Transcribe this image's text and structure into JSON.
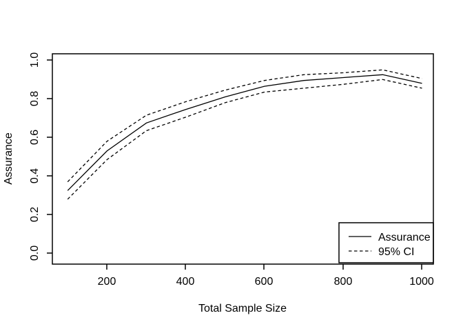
{
  "figure": {
    "background_color": "#ffffff",
    "line_color": "#000000"
  },
  "chart_data": {
    "type": "line",
    "title": "",
    "xlabel": "Total Sample Size",
    "ylabel": "Assurance",
    "x": [
      100,
      200,
      300,
      400,
      500,
      600,
      700,
      800,
      900,
      1000
    ],
    "series": [
      {
        "name": "Assurance",
        "line_style": "solid",
        "values": [
          0.325,
          0.53,
          0.675,
          0.745,
          0.81,
          0.865,
          0.895,
          0.91,
          0.925,
          0.88
        ]
      },
      {
        "name": "95% CI upper",
        "line_style": "dashed",
        "values": [
          0.37,
          0.58,
          0.715,
          0.785,
          0.845,
          0.895,
          0.925,
          0.935,
          0.95,
          0.905
        ]
      },
      {
        "name": "95% CI lower",
        "line_style": "dashed",
        "values": [
          0.28,
          0.485,
          0.635,
          0.705,
          0.78,
          0.835,
          0.855,
          0.875,
          0.9,
          0.855
        ]
      }
    ],
    "xlim": [
      64,
      1036
    ],
    "ylim": [
      -0.04,
      1.04
    ],
    "grid": false,
    "x_tick_labels": [
      "200",
      "400",
      "600",
      "800",
      "1000"
    ],
    "y_tick_labels": [
      "0.0",
      "0.2",
      "0.4",
      "0.6",
      "0.8",
      "1.0"
    ],
    "legend": {
      "position": "bottom-right",
      "entries": [
        {
          "label": "Assurance",
          "line_style": "solid"
        },
        {
          "label": "95% CI",
          "line_style": "dashed"
        }
      ]
    }
  }
}
